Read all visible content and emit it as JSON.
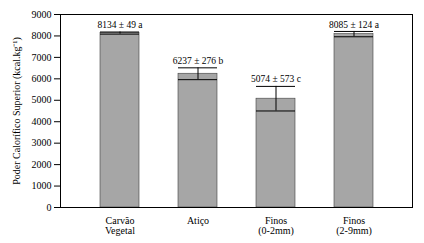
{
  "chart_data": {
    "type": "bar",
    "categories": [
      "Carvão Vegetal",
      "Atiço",
      "Finos (0-2mm)",
      "Finos (2-9mm)"
    ],
    "values": [
      8134,
      6237,
      5074,
      8085
    ],
    "errors": [
      49,
      276,
      573,
      124
    ],
    "value_labels": [
      "8134 ± 49 a",
      "6237 ± 276 b",
      "5074 ± 573 c",
      "8085 ± 124 a"
    ],
    "data_labels": true,
    "color": "#a6a6a6",
    "ylabel": "Poder Calorífico Superior (kcal.kg⁻¹)",
    "ylim": [
      0,
      9000
    ],
    "yticks": [
      0,
      1000,
      2000,
      3000,
      4000,
      5000,
      6000,
      7000,
      8000,
      9000
    ],
    "grid": false
  }
}
